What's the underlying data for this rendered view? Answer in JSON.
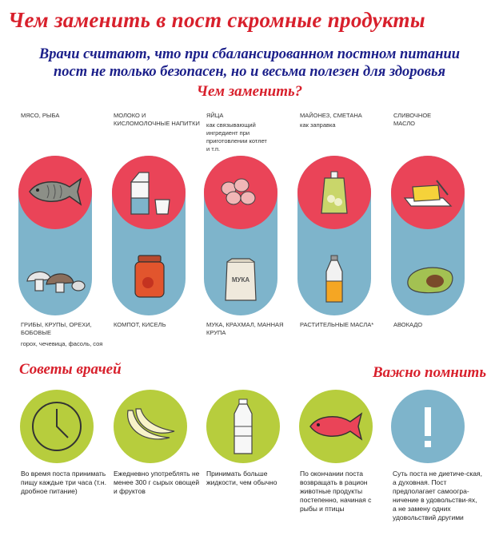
{
  "header": {
    "title": "Чем заменить в пост скромные продукты",
    "subtitle_line1": "Врачи считают, что при сбалансированном постном питании",
    "subtitle_line2": "пост не только безопасен, но и весьма полезен для здоровья",
    "question": "Чем заменить?"
  },
  "columns": [
    {
      "top_label": "МЯСО, РЫБА",
      "top_note": "",
      "bottom_label": "ГРИБЫ, КРУПЫ, ОРЕХИ, БОБОВЫЕ",
      "bottom_note": "горох, чечевица, фасоль, соя",
      "top_icon": "fish-icon",
      "bottom_icon": "mushrooms-icon"
    },
    {
      "top_label": "МОЛОКО И КИСЛОМОЛОЧНЫЕ НАПИТКИ",
      "top_note": "",
      "bottom_label": "КОМПОТ, КИСЕЛЬ",
      "bottom_note": "",
      "top_icon": "milk-carton-icon",
      "bottom_icon": "jar-icon"
    },
    {
      "top_label": "ЯЙЦА",
      "top_note": "как связывающий ингредиент при приготовлении котлет и т.п.",
      "bottom_label": "МУКА, КРАХМАЛ, МАННАЯ КРУПА",
      "bottom_note": "",
      "top_icon": "eggs-icon",
      "bottom_icon": "flour-bag-icon",
      "flour_text": "МУКА"
    },
    {
      "top_label": "МАЙОНЕЗ, СМЕТАНА",
      "top_note": "как заправка",
      "bottom_label": "РАСТИТЕЛЬНЫЕ МАСЛА*",
      "bottom_note": "",
      "top_icon": "mayo-pack-icon",
      "bottom_icon": "oil-bottle-icon"
    },
    {
      "top_label": "СЛИВОЧНОЕ МАСЛО",
      "top_note": "",
      "bottom_label": "АВОКАДО",
      "bottom_note": "",
      "top_icon": "butter-icon",
      "bottom_icon": "avocado-icon"
    }
  ],
  "sections": {
    "advice": "Советы врачей",
    "remember": "Важно помнить"
  },
  "tips": [
    {
      "text": "Во время поста принимать пищу каждые три часа (т.н. дробное питание)",
      "icon": "clock-icon"
    },
    {
      "text": "Ежедневно употреблять не менее 300 г сырых овощей и фруктов",
      "icon": "bananas-icon"
    },
    {
      "text": "Принимать больше жидкости, чем обычно",
      "icon": "water-bottle-icon"
    },
    {
      "text": "По окончании поста возвращать в рацион животные продукты постепенно, начиная с рыбы и птицы",
      "icon": "fish-icon"
    },
    {
      "text": "Суть поста не диетиче-ская, а духовная. Пост предполагает самоогра-ничение в удовольстви-ях, а не замену одних удовольствий другими",
      "icon": "exclamation-icon"
    }
  ],
  "colors": {
    "red_title": "#d8202c",
    "blue_subtitle": "#1b1f8a",
    "red_circle": "#ea4458",
    "blue_pill": "#7eb4cb",
    "green_circle": "#b7cd3d"
  }
}
